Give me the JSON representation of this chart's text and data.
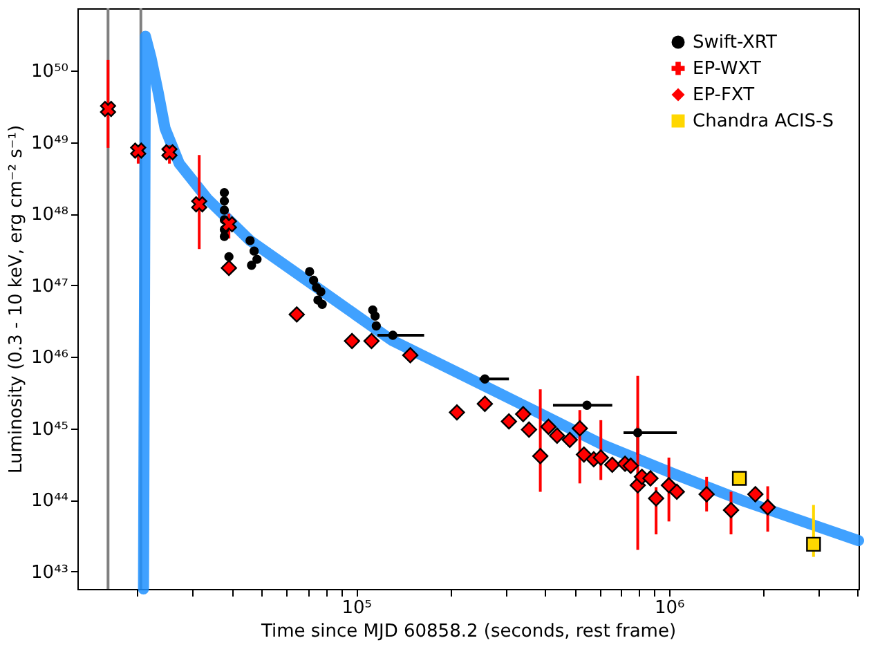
{
  "chart_data": {
    "type": "scatter",
    "xlabel": "Time since MJD 60858.2 (seconds, rest frame)",
    "ylabel": "Luminosity (0.3 - 10 keV, erg cm⁻² s⁻¹)",
    "log": "xy",
    "grid": false,
    "legend": "top right",
    "xlim": [
      12850,
      4040000
    ],
    "ylim": [
      5.7e+42,
      7.4e+50
    ],
    "xticks": [
      {
        "value": 20000,
        "label": null
      },
      {
        "value": 30000,
        "label": null
      },
      {
        "value": 40000,
        "label": null
      },
      {
        "value": 50000,
        "label": null
      },
      {
        "value": 60000,
        "label": null
      },
      {
        "value": 70000,
        "label": null
      },
      {
        "value": 80000,
        "label": null
      },
      {
        "value": 90000,
        "label": null
      },
      {
        "value": 100000,
        "label": "10⁵"
      },
      {
        "value": 200000,
        "label": null
      },
      {
        "value": 300000,
        "label": null
      },
      {
        "value": 400000,
        "label": null
      },
      {
        "value": 500000,
        "label": null
      },
      {
        "value": 600000,
        "label": null
      },
      {
        "value": 700000,
        "label": null
      },
      {
        "value": 800000,
        "label": null
      },
      {
        "value": 900000,
        "label": null
      },
      {
        "value": 1000000,
        "label": "10⁶"
      },
      {
        "value": 2000000,
        "label": null
      },
      {
        "value": 3000000,
        "label": null
      },
      {
        "value": 4000000,
        "label": null
      }
    ],
    "yticks": [
      {
        "value": 1e+43,
        "label": "10⁴³"
      },
      {
        "value": 1e+44,
        "label": "10⁴⁴"
      },
      {
        "value": 1e+45,
        "label": "10⁴⁵"
      },
      {
        "value": 1e+46,
        "label": "10⁴⁶"
      },
      {
        "value": 1e+47,
        "label": "10⁴⁷"
      },
      {
        "value": 1e+48,
        "label": "10⁴⁸"
      },
      {
        "value": 1e+49,
        "label": "10⁴⁹"
      },
      {
        "value": 1e+50,
        "label": "10⁵⁰"
      }
    ],
    "ref_lines": [
      {
        "axis": "x",
        "value": 16100,
        "label": null,
        "color": "#808080"
      },
      {
        "axis": "x",
        "value": 20500,
        "label": null,
        "color": "#808080"
      }
    ],
    "series": [
      {
        "type": "line",
        "color": "#1e90ff",
        "x": [
          20900,
          21200,
          22100,
          23300,
          24500,
          27200,
          33500,
          45800,
          77100,
          130000,
          218000,
          368000,
          619000,
          1040000,
          1750000,
          4040000
        ],
        "values": [
          5.7e+42,
          3e+50,
          1.5e+50,
          4.9e+49,
          1.55e+49,
          5e+48,
          1.6e+48,
          4.2e+47,
          8.5e+46,
          1.7e+46,
          5.6e+45,
          1.8e+45,
          5.8e+44,
          2.3e+44,
          9.5e+43,
          2.7e+43
        ]
      },
      {
        "name": "Swift-XRT",
        "color": "#000000",
        "marker": "circle",
        "x": [
          37900,
          37900,
          37900,
          37900,
          37900,
          37900,
          39200,
          45800,
          47200,
          48200,
          46300,
          71000,
          73100,
          74700,
          77100,
          75500,
          77900,
          113000,
          115000,
          116000,
          131000,
          258000,
          547000,
          795000
        ],
        "values": [
          1.96e+48,
          1.5e+48,
          1.12e+48,
          8.2e+47,
          6e+47,
          4.8e+47,
          2.5e+47,
          4.2e+47,
          3e+47,
          2.3e+47,
          1.9e+47,
          1.55e+47,
          1.17e+47,
          9.3e+46,
          8.1e+46,
          6.2e+46,
          5.4e+46,
          4.5e+46,
          3.7e+46,
          2.7e+46,
          2e+46,
          4.9e+45,
          2.1e+45,
          8.7e+44
        ],
        "xerrors": [
          null,
          null,
          null,
          null,
          null,
          null,
          null,
          null,
          null,
          null,
          null,
          null,
          null,
          null,
          null,
          null,
          null,
          null,
          null,
          null,
          [
            117000,
            165000
          ],
          [
            248000,
            308000
          ],
          [
            426000,
            659000
          ],
          [
            716000,
            1060000
          ]
        ],
        "errors": [
          null,
          null,
          null,
          null,
          null,
          null,
          null,
          null,
          null,
          null,
          null,
          null,
          null,
          null,
          null,
          null,
          null,
          null,
          null,
          null,
          null,
          null,
          null,
          [
            4.3e+44,
            1.05e+45
          ]
        ]
      },
      {
        "name": "EP-WXT",
        "color": "#ff0000",
        "marker": "cross",
        "x": [
          16100,
          20100,
          25300,
          31500,
          39200
        ],
        "values": [
          2.9e+49,
          7.6e+48,
          7.2e+48,
          1.35e+48,
          7.1e+47
        ],
        "errors": [
          [
            8.3e+48,
            1.4e+50
          ],
          [
            5e+48,
            9e+48
          ],
          [
            5e+48,
            9e+48
          ],
          [
            3.2e+47,
            6.6e+48
          ],
          [
            4.5e+47,
            1e+48
          ]
        ]
      },
      {
        "name": "EP-FXT",
        "color": "#ff0000",
        "marker": "diamond",
        "x": [
          39200,
          64600,
          97000,
          112000,
          149000,
          210000,
          258000,
          308000,
          342000,
          357000,
          388000,
          412000,
          439000,
          482000,
          519000,
          535000,
          575000,
          606000,
          659000,
          724000,
          755000,
          795000,
          820000,
          873000,
          910000,
          1000000,
          1060000,
          1320000,
          1580000,
          1890000,
          2070000
        ],
        "values": [
          1.74e+47,
          3.9e+46,
          1.66e+46,
          1.66e+46,
          1.05e+46,
          1.67e+45,
          2.2e+45,
          1.25e+45,
          1.58e+45,
          9.6e+44,
          4.1e+44,
          1.05e+45,
          7.9e+44,
          6.9e+44,
          1e+45,
          4.3e+44,
          3.7e+44,
          3.9e+44,
          3.1e+44,
          3.2e+44,
          3e+44,
          1.6e+44,
          2.1e+44,
          2e+44,
          1.05e+44,
          1.6e+44,
          1.3e+44,
          1.2e+44,
          7.2e+43,
          1.2e+44,
          7.9e+43
        ],
        "errors": [
          null,
          null,
          null,
          null,
          null,
          null,
          null,
          null,
          null,
          null,
          [
            1.3e+44,
            3.5e+45
          ],
          null,
          null,
          null,
          [
            1.7e+44,
            1.8e+45
          ],
          null,
          null,
          [
            1.9e+44,
            1.3e+45
          ],
          null,
          null,
          null,
          [
            2e+43,
            5.4e+45
          ],
          null,
          null,
          [
            3.3e+43,
            1.5e+44
          ],
          [
            5e+43,
            3.9e+44
          ],
          null,
          [
            6.9e+43,
            2.1e+44
          ],
          [
            3.3e+43,
            1.3e+44
          ],
          null,
          [
            3.6e+43,
            1.55e+44
          ]
        ]
      },
      {
        "name": "Chandra ACIS-S",
        "color": "#ffd700",
        "marker": "square",
        "x": [
          1680000,
          2900000
        ],
        "values": [
          2e+44,
          2.4e+43
        ],
        "errors": [
          null,
          [
            1.6e+43,
            8.5e+43
          ]
        ]
      }
    ]
  }
}
